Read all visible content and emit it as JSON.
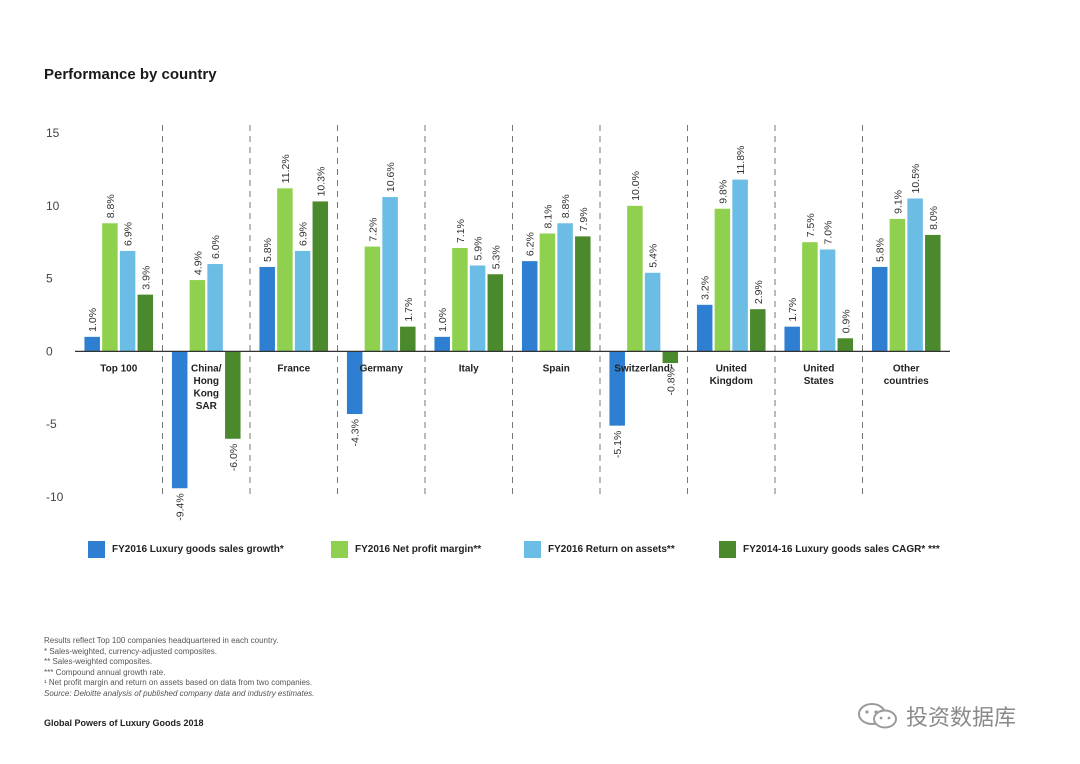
{
  "title": "Performance by country",
  "colors": {
    "sales_growth": "#2e7fd1",
    "net_profit": "#8fd14f",
    "roa": "#6bbde6",
    "cagr": "#4a8a2c"
  },
  "chart_data": {
    "type": "bar",
    "title": "Performance by country",
    "ylim": [
      -10,
      15
    ],
    "yticks": [
      15,
      10,
      5,
      0,
      -5,
      -10
    ],
    "categories": [
      "Top 100",
      "China/\nHong\nKong\nSAR",
      "France",
      "Germany",
      "Italy",
      "Spain",
      "Switzerland¹",
      "United\nKingdom",
      "United\nStates",
      "Other\ncountries"
    ],
    "series": [
      {
        "name": "FY2016 Luxury goods sales growth*",
        "key": "sales_growth",
        "values": [
          1.0,
          -9.4,
          5.8,
          -4.3,
          1.0,
          6.2,
          -5.1,
          3.2,
          1.7,
          5.8
        ],
        "labels": [
          "1.0%",
          "-9.4%",
          "5.8%",
          "-4.3%",
          "1.0%",
          "6.2%",
          "-5.1%",
          "3.2%",
          "1.7%",
          "5.8%"
        ]
      },
      {
        "name": "FY2016 Net profit margin**",
        "key": "net_profit",
        "values": [
          8.8,
          4.9,
          11.2,
          7.2,
          7.1,
          8.1,
          10.0,
          9.8,
          7.5,
          9.1
        ],
        "labels": [
          "8.8%",
          "4.9%",
          "11.2%",
          "7.2%",
          "7.1%",
          "8.1%",
          "10.0%",
          "9.8%",
          "7.5%",
          "9.1%"
        ]
      },
      {
        "name": "FY2016 Return on assets**",
        "key": "roa",
        "values": [
          6.9,
          6.0,
          6.9,
          10.6,
          5.9,
          8.8,
          5.4,
          11.8,
          7.0,
          10.5
        ],
        "labels": [
          "6.9%",
          "6.0%",
          "6.9%",
          "10.6%",
          "5.9%",
          "8.8%",
          "5.4%",
          "11.8%",
          "7.0%",
          "10.5%"
        ]
      },
      {
        "name": "FY2014-16 Luxury goods sales CAGR* ***",
        "key": "cagr",
        "values": [
          3.9,
          -6.0,
          10.3,
          1.7,
          5.3,
          7.9,
          -0.8,
          2.9,
          0.9,
          8.0
        ],
        "labels": [
          "3.9%",
          "-6.0%",
          "10.3%",
          "1.7%",
          "5.3%",
          "7.9%",
          "-0.8%",
          "2.9%",
          "0.9%",
          "8.0%"
        ]
      }
    ]
  },
  "legend": [
    {
      "label": "FY2016 Luxury goods sales growth*",
      "key": "sales_growth"
    },
    {
      "label": "FY2016 Net profit margin**",
      "key": "net_profit"
    },
    {
      "label": "FY2016 Return on assets**",
      "key": "roa"
    },
    {
      "label": "FY2014-16 Luxury goods sales CAGR* ***",
      "key": "cagr"
    }
  ],
  "notes": [
    "Results reflect Top 100 companies headquartered in each country.",
    "*      Sales-weighted, currency-adjusted composites.",
    "**    Sales-weighted composites.",
    "***  Compound annual growth rate.",
    "¹ Net profit margin and return on assets based on data from two companies."
  ],
  "source": "Source: Deloitte analysis of published company data and industry estimates.",
  "footer": "Global Powers of Luxury Goods 2018",
  "watermark": "投资数据库"
}
